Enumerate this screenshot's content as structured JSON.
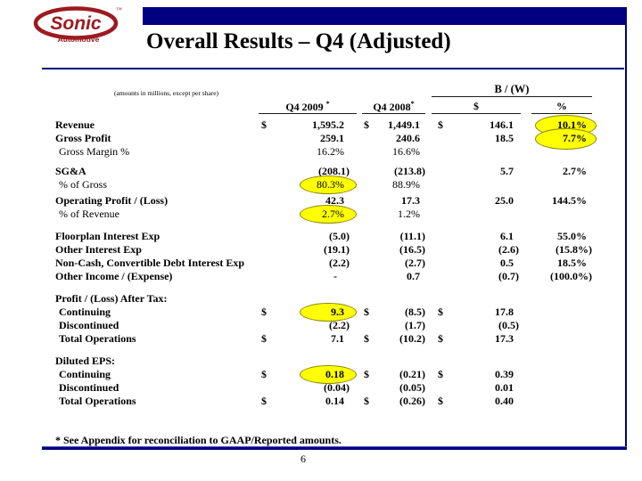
{
  "logo": {
    "brand": "Sonic",
    "sub": "Automotive",
    "tm": "™"
  },
  "header": {
    "title": "Overall Results – Q4 (Adjusted)"
  },
  "table": {
    "note": "(amounts in millions, except per share)",
    "col_group": "B / (W)",
    "columns": {
      "y2009": "Q4 2009",
      "y2008": "Q4 2008",
      "star": "*",
      "bw_dollar": "$",
      "bw_pct": "%"
    },
    "rows": [
      {
        "label": "Revenue",
        "bold": true,
        "d1": "$",
        "v1": "1,595.2",
        "d2": "$",
        "v2": "1,449.1",
        "d3": "$",
        "v3": "146.1",
        "v4": "10.1%",
        "hl": [
          "v4"
        ]
      },
      {
        "label": "Gross Profit",
        "bold": true,
        "v1": "259.1",
        "v2": "240.6",
        "v3": "18.5",
        "v4": "7.7%",
        "hl": [
          "v4"
        ]
      },
      {
        "label": "Gross Margin %",
        "indent": true,
        "v1": "16.2%",
        "v2": "16.6%"
      },
      {
        "label": "SG&A",
        "bold": true,
        "gap": 7,
        "v1": "(208.1)",
        "v2": "(213.8)",
        "v3": "5.7",
        "v4": "2.7%"
      },
      {
        "label": "% of Gross",
        "indent": true,
        "v1": "80.3%",
        "v2": "88.9%",
        "hl": [
          "v1"
        ]
      },
      {
        "label": "Operating Profit / (Loss)",
        "bold": true,
        "gap": 3,
        "v1": "42.3",
        "v2": "17.3",
        "v3": "25.0",
        "v4": "144.5%"
      },
      {
        "label": "% of Revenue",
        "indent": true,
        "v1": "2.7%",
        "v2": "1.2%",
        "hl": [
          "v1"
        ]
      },
      {
        "label": "Floorplan Interest Exp",
        "bold": true,
        "gap": 10,
        "v1": "(5.0)",
        "v2": "(11.1)",
        "v3": "6.1",
        "v4": "55.0%"
      },
      {
        "label": "Other Interest Exp",
        "bold": true,
        "v1": "(19.1)",
        "v2": "(16.5)",
        "v3": "(2.6)",
        "v4": "(15.8%)"
      },
      {
        "label": "Non-Cash, Convertible Debt Interest Exp",
        "bold": true,
        "v1": "(2.2)",
        "v2": "(2.7)",
        "v3": "0.5",
        "v4": "18.5%"
      },
      {
        "label": "Other Income / (Expense)",
        "bold": true,
        "v1": "-",
        "v2": "0.7",
        "v3": "(0.7)",
        "v4": "(100.0%)"
      },
      {
        "label": "Profit / (Loss) After Tax:",
        "bold": true,
        "gap": 10
      },
      {
        "label": "Continuing",
        "bold": true,
        "indent": true,
        "d1": "$",
        "v1": "9.3",
        "d2": "$",
        "v2": "(8.5)",
        "d3": "$",
        "v3": "17.8",
        "hl": [
          "v1"
        ]
      },
      {
        "label": "Discontinued",
        "bold": true,
        "indent": true,
        "v1": "(2.2)",
        "v2": "(1.7)",
        "v3": "(0.5)"
      },
      {
        "label": "Total Operations",
        "bold": true,
        "indent": true,
        "d1": "$",
        "v1": "7.1",
        "d2": "$",
        "v2": "(10.2)",
        "d3": "$",
        "v3": "17.3"
      },
      {
        "label": "Diluted EPS:",
        "bold": true,
        "gap": 10
      },
      {
        "label": "Continuing",
        "bold": true,
        "indent": true,
        "d1": "$",
        "v1": "0.18",
        "d2": "$",
        "v2": "(0.21)",
        "d3": "$",
        "v3": "0.39",
        "hl": [
          "v1"
        ]
      },
      {
        "label": "Discontinued",
        "bold": true,
        "indent": true,
        "v1": "(0.04)",
        "v2": "(0.05)",
        "v3": "0.01"
      },
      {
        "label": "Total Operations",
        "bold": true,
        "indent": true,
        "d1": "$",
        "v1": "0.14",
        "d2": "$",
        "v2": "(0.26)",
        "d3": "$",
        "v3": "0.40"
      }
    ]
  },
  "footnote": "*  See Appendix for reconciliation to GAAP/Reported amounts.",
  "page_number": "6",
  "colors": {
    "navy": "#000080",
    "logo_red": "#9b1b21",
    "highlight": "#ffff00",
    "highlight_border": "#86860a",
    "text": "#000000"
  }
}
